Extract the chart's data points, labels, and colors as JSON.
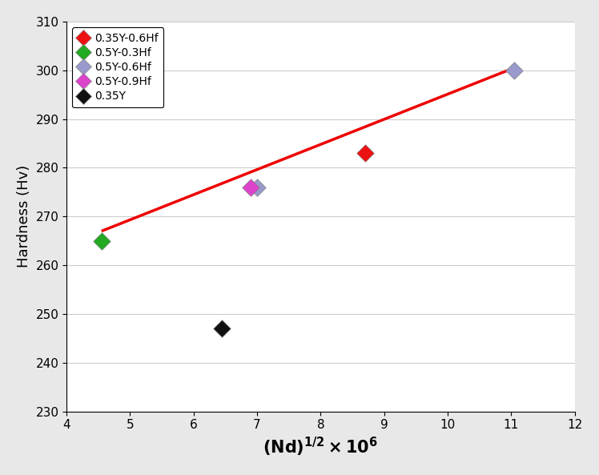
{
  "series": [
    {
      "label": "0.35Y-0.6Hf",
      "color": "#ee1111",
      "x": [
        8.7
      ],
      "y": [
        283
      ]
    },
    {
      "label": "0.5Y-0.3Hf",
      "color": "#22aa22",
      "x": [
        4.55
      ],
      "y": [
        265
      ]
    },
    {
      "label": "0.5Y-0.6Hf",
      "color": "#9999cc",
      "x": [
        7.0,
        11.05
      ],
      "y": [
        276,
        300
      ]
    },
    {
      "label": "0.5Y-0.9Hf",
      "color": "#dd44cc",
      "x": [
        6.9
      ],
      "y": [
        276
      ]
    },
    {
      "label": "0.35Y",
      "color": "#111111",
      "x": [
        6.45
      ],
      "y": [
        247
      ]
    }
  ],
  "regression_line": {
    "x": [
      4.55,
      11.05
    ],
    "y": [
      267.0,
      300.5
    ],
    "color": "#ee0000",
    "linewidth": 2.5
  },
  "xlim": [
    4,
    12
  ],
  "ylim": [
    230,
    310
  ],
  "xticks": [
    4,
    5,
    6,
    7,
    8,
    9,
    10,
    11,
    12
  ],
  "yticks": [
    230,
    240,
    250,
    260,
    270,
    280,
    290,
    300,
    310
  ],
  "ylabel": "Hardness (Hv)",
  "marker": "D",
  "marker_size": 11,
  "figsize": [
    7.48,
    5.93
  ],
  "dpi": 100,
  "fig_bg_color": "#e8e8e8",
  "plot_bg_color": "#ffffff"
}
